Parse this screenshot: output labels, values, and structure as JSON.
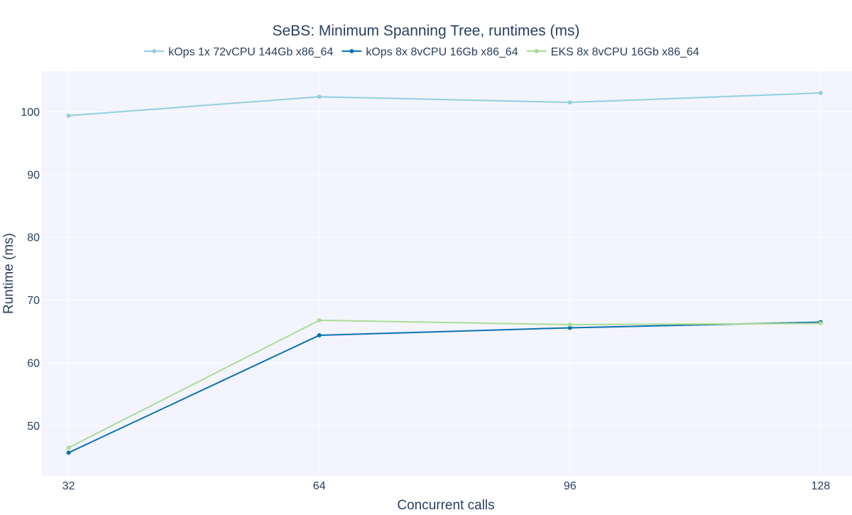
{
  "chart_data": {
    "type": "line",
    "title": "SeBS: Minimum Spanning Tree, runtimes (ms)",
    "xlabel": "Concurrent calls",
    "ylabel": "Runtime (ms)",
    "x": [
      32,
      64,
      96,
      128
    ],
    "x_ticks": [
      "32",
      "64",
      "96",
      "128"
    ],
    "y_ticks": [
      "50",
      "60",
      "70",
      "80",
      "90",
      "100"
    ],
    "xlim": [
      28.5,
      132
    ],
    "ylim": [
      42,
      106.5
    ],
    "grid": true,
    "legend_position": "top-center",
    "series": [
      {
        "name": "kOps 1x 72vCPU 144Gb x86_64",
        "color": "#92cfe1",
        "values": [
          99.4,
          102.4,
          101.5,
          103.0
        ]
      },
      {
        "name": "kOps 8x 8vCPU 16Gb x86_64",
        "color": "#0a72b0",
        "values": [
          45.7,
          64.4,
          65.6,
          66.5
        ]
      },
      {
        "name": "EKS 8x 8vCPU 16Gb x86_64",
        "color": "#aadd94",
        "values": [
          46.5,
          66.8,
          66.1,
          66.3
        ]
      }
    ]
  },
  "colors": {
    "plot_background": "#f3f4fd",
    "grid": "#ffffff",
    "text": "#2a3f5f"
  }
}
